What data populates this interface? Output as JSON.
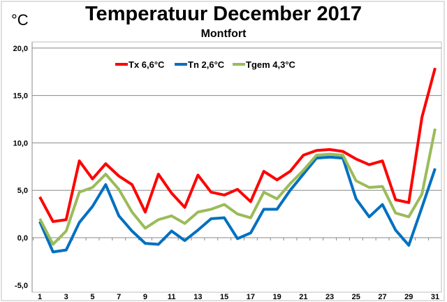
{
  "chart_data": {
    "type": "line",
    "title": "Temperatuur December 2017",
    "subtitle": "Montfort",
    "ylabel": "°C",
    "xlabel": "",
    "ylim": [
      -5,
      20
    ],
    "yticks": [
      "-5,0",
      "0,0",
      "5,0",
      "10,0",
      "15,0",
      "20,0"
    ],
    "ytick_values": [
      -5,
      0,
      5,
      10,
      15,
      20
    ],
    "xlim": [
      1,
      31
    ],
    "xticks": [
      1,
      3,
      5,
      7,
      9,
      11,
      13,
      15,
      17,
      19,
      21,
      23,
      25,
      27,
      29,
      31
    ],
    "grid": true,
    "legend_position": "top-left",
    "x": [
      1,
      2,
      3,
      4,
      5,
      6,
      7,
      8,
      9,
      10,
      11,
      12,
      13,
      14,
      15,
      16,
      17,
      18,
      19,
      20,
      21,
      22,
      23,
      24,
      25,
      26,
      27,
      28,
      29,
      30,
      31
    ],
    "series": [
      {
        "name": "Tx 6,6°C",
        "color": "#ff0000",
        "values": [
          4.3,
          1.7,
          1.9,
          8.1,
          6.2,
          7.8,
          6.5,
          5.6,
          2.7,
          6.7,
          4.7,
          3.2,
          6.6,
          4.8,
          4.5,
          5.1,
          3.8,
          7.0,
          6.1,
          7.0,
          8.7,
          9.2,
          9.3,
          9.1,
          8.3,
          7.7,
          8.1,
          4.0,
          3.7,
          12.7,
          17.9
        ]
      },
      {
        "name": "Tn 2,6°C",
        "color": "#0070c0",
        "values": [
          1.7,
          -1.5,
          -1.3,
          1.6,
          3.3,
          5.6,
          2.3,
          0.7,
          -0.6,
          -0.7,
          0.7,
          -0.3,
          0.8,
          2.0,
          2.1,
          -0.1,
          0.5,
          3.0,
          3.0,
          5.0,
          6.7,
          8.4,
          8.5,
          8.4,
          4.1,
          2.2,
          3.5,
          0.8,
          -0.8,
          3.2,
          7.3
        ]
      },
      {
        "name": "Tgem 4,3°C",
        "color": "#9bbb59",
        "values": [
          2.0,
          -0.7,
          0.7,
          4.8,
          5.3,
          6.7,
          5.1,
          2.7,
          1.0,
          1.9,
          2.3,
          1.5,
          2.7,
          3.0,
          3.5,
          2.5,
          2.1,
          4.8,
          4.1,
          5.7,
          7.1,
          8.7,
          8.8,
          8.7,
          6.0,
          5.3,
          5.4,
          2.6,
          2.2,
          4.6,
          11.5
        ]
      }
    ]
  }
}
